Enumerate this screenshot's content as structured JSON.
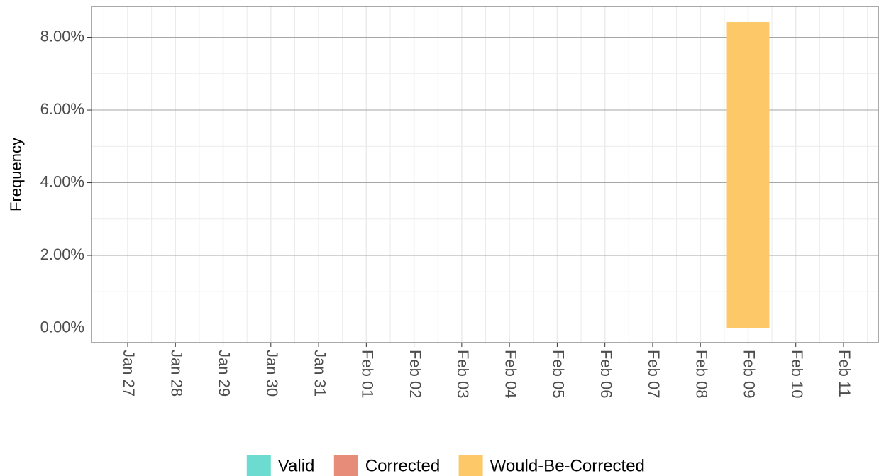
{
  "chart_data": {
    "type": "bar",
    "stacked": true,
    "y_label": "Frequency",
    "categories": [
      "Jan 27",
      "Jan 28",
      "Jan 29",
      "Jan 30",
      "Jan 31",
      "Feb 01",
      "Feb 02",
      "Feb 03",
      "Feb 04",
      "Feb 05",
      "Feb 06",
      "Feb 07",
      "Feb 08",
      "Feb 09",
      "Feb 10",
      "Feb 11"
    ],
    "series": [
      {
        "name": "Valid",
        "color": "#6bdccf",
        "values": [
          0,
          0,
          0,
          0,
          0,
          0,
          0,
          0,
          0,
          0,
          0,
          0,
          0,
          0,
          0,
          0
        ]
      },
      {
        "name": "Corrected",
        "color": "#e68c78",
        "values": [
          0,
          0,
          0,
          0,
          0,
          0,
          0,
          0,
          0,
          0,
          0,
          0,
          0,
          0,
          0,
          0
        ]
      },
      {
        "name": "Would-Be-Corrected",
        "color": "#fdc867",
        "values": [
          0,
          0,
          0,
          0,
          0,
          0,
          0,
          0,
          0,
          0,
          0,
          0,
          0,
          8.42,
          0,
          0
        ]
      }
    ],
    "ylim": [
      -0.4,
      8.85
    ],
    "yticks": [
      {
        "value": 0,
        "label": "0.00%"
      },
      {
        "value": 2,
        "label": "2.00%"
      },
      {
        "value": 4,
        "label": "4.00%"
      },
      {
        "value": 6,
        "label": "6.00%"
      },
      {
        "value": 8,
        "label": "8.00%"
      }
    ],
    "grid": true,
    "legend": "bottom"
  }
}
